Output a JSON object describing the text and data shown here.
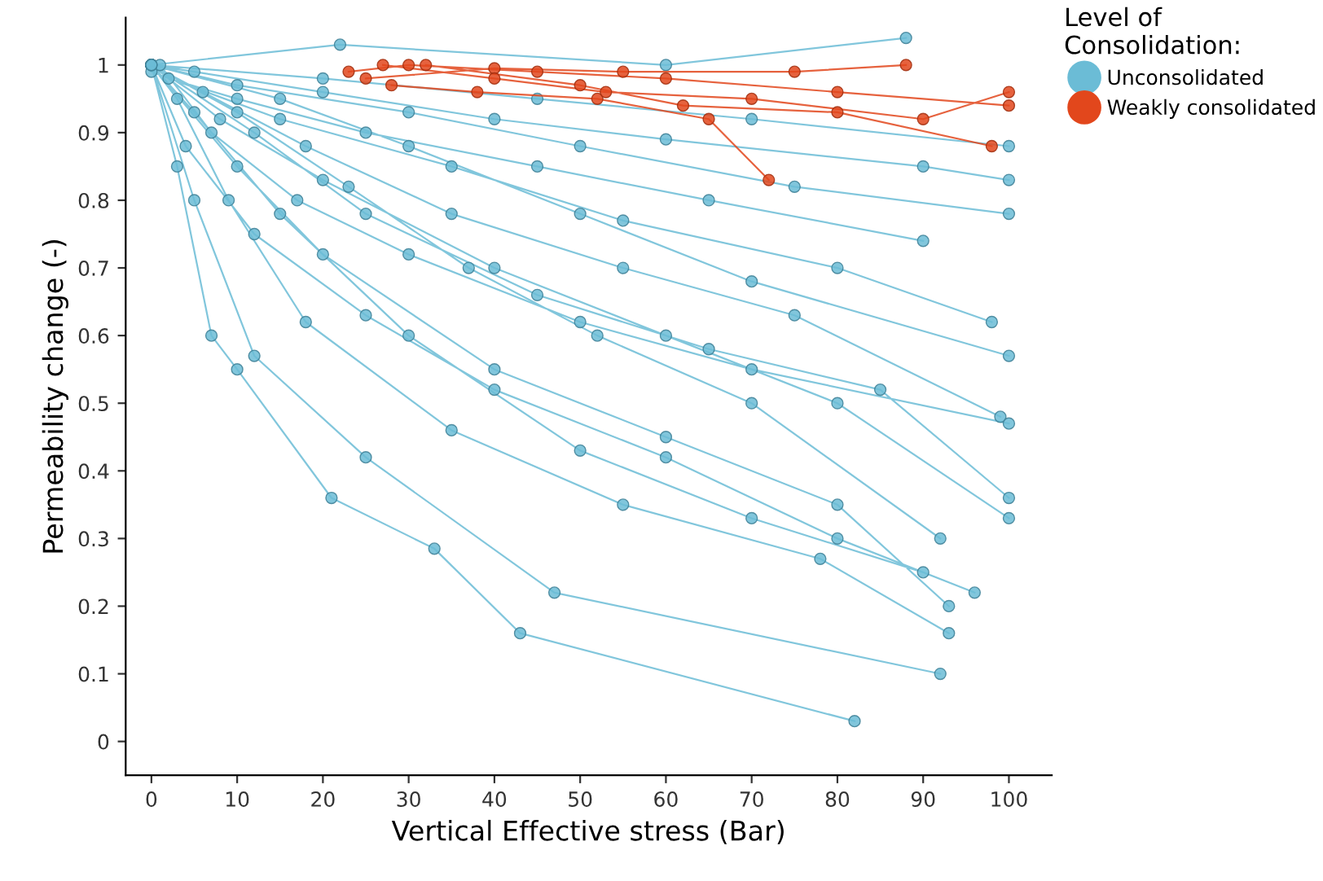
{
  "chart_data": {
    "type": "line",
    "xlabel": "Vertical Effective stress (Bar)",
    "ylabel": "Permeability change (-)",
    "legend_title": "Level of\nConsolidation:",
    "legend": "right",
    "marker": "circle",
    "line_style": "solid",
    "grid": false,
    "xlim": [
      -3,
      105
    ],
    "xticks": [
      0,
      10,
      20,
      30,
      40,
      50,
      60,
      70,
      80,
      90,
      100
    ],
    "ylim": [
      -0.05,
      1.07
    ],
    "yticks": [
      0,
      0.1,
      0.2,
      0.3,
      0.4,
      0.5,
      0.6,
      0.7,
      0.8,
      0.9,
      1
    ],
    "series": [
      {
        "name": "Unconsolidated",
        "color": "#6bbcd6",
        "x": [
          0,
          3,
          7,
          10,
          21,
          33,
          43,
          82,
          null,
          0,
          5,
          12,
          25,
          47,
          92,
          null,
          0,
          10,
          20,
          40,
          60,
          80,
          93,
          null,
          0,
          8,
          20,
          40,
          60,
          80,
          100,
          null,
          0,
          15,
          30,
          50,
          70,
          100,
          null,
          0,
          10,
          30,
          50,
          75,
          100,
          null,
          0,
          20,
          45,
          70,
          100,
          null,
          0,
          5,
          15,
          30,
          50,
          70,
          90,
          null,
          0,
          3,
          9,
          18,
          35,
          55,
          78,
          93,
          null,
          0,
          6,
          18,
          35,
          55,
          75,
          99,
          null,
          0,
          12,
          25,
          45,
          65,
          85,
          100,
          null,
          0,
          2,
          10,
          25,
          45,
          65,
          90,
          null,
          0,
          22,
          60,
          88,
          null,
          0,
          4,
          12,
          25,
          40,
          60,
          80,
          96,
          null,
          1,
          7,
          17,
          30,
          50,
          70,
          100,
          null,
          0,
          15,
          35,
          55,
          80,
          98,
          null,
          0,
          5,
          20,
          40,
          60,
          90,
          100,
          null,
          0,
          10,
          23,
          37,
          52,
          70,
          92
        ],
        "values": [
          1,
          0.85,
          0.6,
          0.55,
          0.36,
          0.285,
          0.16,
          0.03,
          null,
          1,
          0.8,
          0.57,
          0.42,
          0.22,
          0.1,
          null,
          1,
          0.85,
          0.72,
          0.55,
          0.45,
          0.35,
          0.2,
          null,
          1,
          0.92,
          0.83,
          0.7,
          0.6,
          0.5,
          0.33,
          null,
          1,
          0.95,
          0.88,
          0.78,
          0.68,
          0.57,
          null,
          1,
          0.97,
          0.93,
          0.88,
          0.82,
          0.78,
          null,
          1,
          0.98,
          0.95,
          0.92,
          0.88,
          null,
          1,
          0.93,
          0.78,
          0.6,
          0.43,
          0.33,
          0.25,
          null,
          1,
          0.95,
          0.8,
          0.62,
          0.46,
          0.35,
          0.27,
          0.16,
          null,
          1,
          0.96,
          0.88,
          0.78,
          0.7,
          0.63,
          0.48,
          null,
          1,
          0.9,
          0.78,
          0.66,
          0.58,
          0.52,
          0.36,
          null,
          1,
          0.98,
          0.95,
          0.9,
          0.85,
          0.8,
          0.74,
          null,
          1,
          1.03,
          1.0,
          1.04,
          null,
          1,
          0.88,
          0.75,
          0.63,
          0.52,
          0.42,
          0.3,
          0.22,
          null,
          1,
          0.9,
          0.8,
          0.72,
          0.62,
          0.55,
          0.47,
          null,
          0.99,
          0.92,
          0.85,
          0.77,
          0.7,
          0.62,
          null,
          1,
          0.99,
          0.96,
          0.92,
          0.89,
          0.85,
          0.83,
          null,
          1,
          0.93,
          0.82,
          0.7,
          0.6,
          0.5,
          0.3
        ]
      },
      {
        "name": "Weakly consolidated",
        "color": "#e2471c",
        "x": [
          23,
          30,
          45,
          60,
          80,
          100,
          null,
          25,
          40,
          55,
          75,
          88,
          null,
          28,
          38,
          52,
          65,
          72,
          null,
          32,
          50,
          62,
          80,
          98,
          null,
          27,
          40,
          53,
          70,
          90,
          100
        ],
        "values": [
          0.99,
          1.0,
          0.99,
          0.98,
          0.96,
          0.94,
          null,
          0.98,
          0.995,
          0.99,
          0.99,
          1.0,
          null,
          0.97,
          0.96,
          0.95,
          0.92,
          0.83,
          null,
          1.0,
          0.97,
          0.94,
          0.93,
          0.88,
          null,
          1.0,
          0.98,
          0.96,
          0.95,
          0.92,
          0.96
        ]
      }
    ]
  }
}
